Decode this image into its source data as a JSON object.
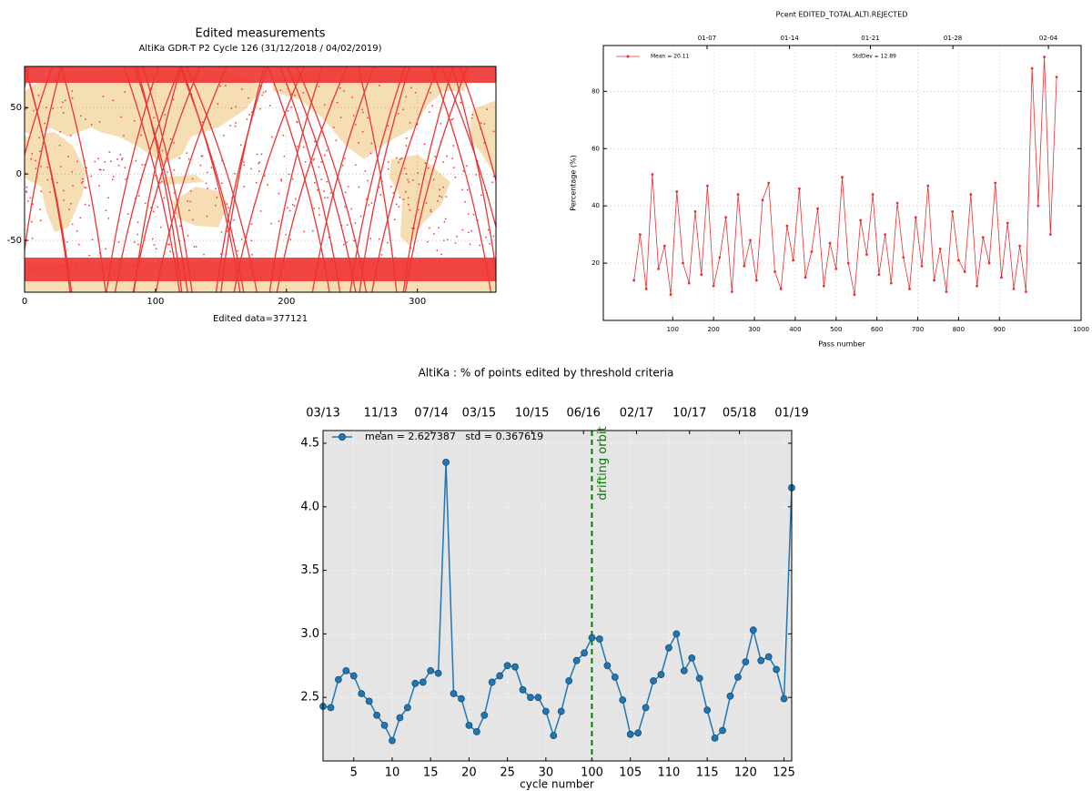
{
  "chart_data": [
    {
      "type": "map",
      "title": "Edited measurements",
      "subtitle": "AltiKa GDR-T P2 Cycle 126 (31/12/2018 / 04/02/2019)",
      "xlabel": "Edited data=377121",
      "xlim": [
        0,
        360
      ],
      "ylim": [
        -89,
        81
      ],
      "xticks": [
        0,
        100,
        200,
        300
      ],
      "yticks": [
        -50,
        0,
        50
      ],
      "grid": true,
      "color": "#ee3333",
      "land_color": "#f5deb3"
    },
    {
      "type": "line",
      "title": "Pcent EDITED_TOTAL.ALTI.REJECTED",
      "xlabel": "Pass number",
      "ylabel": "Percentage (%)",
      "x": [
        5,
        20,
        35,
        50,
        65,
        80,
        95,
        110,
        125,
        140,
        155,
        170,
        185,
        200,
        215,
        230,
        245,
        260,
        275,
        290,
        305,
        320,
        335,
        350,
        365,
        380,
        395,
        410,
        425,
        440,
        455,
        470,
        485,
        500,
        515,
        530,
        545,
        560,
        575,
        590,
        605,
        620,
        635,
        650,
        665,
        680,
        695,
        710,
        725,
        740,
        755,
        770,
        785,
        800,
        815,
        830,
        845,
        860,
        875,
        890,
        905,
        920,
        935,
        950,
        965,
        972,
        978,
        984,
        990,
        996
      ],
      "series": [
        {
          "name": "Mean = 20.11",
          "color": "#e83030",
          "values": [
            14,
            30,
            11,
            51,
            18,
            26,
            9,
            45,
            20,
            13,
            38,
            16,
            47,
            12,
            22,
            36,
            10,
            44,
            19,
            28,
            14,
            42,
            48,
            17,
            11,
            33,
            21,
            46,
            15,
            24,
            39,
            12,
            27,
            18,
            50,
            20,
            9,
            35,
            23,
            44,
            16,
            30,
            13,
            41,
            22,
            11,
            36,
            19,
            47,
            14,
            25,
            10,
            38,
            21,
            17,
            44,
            12,
            29,
            20,
            48,
            15,
            34,
            11,
            26,
            10,
            88,
            40,
            92,
            30,
            85
          ]
        }
      ],
      "annotations": [
        "StdDev = 12.89"
      ],
      "xlim": [
        0,
        1000
      ],
      "ylim": [
        0,
        96
      ],
      "xticks": [
        100,
        200,
        300,
        400,
        500,
        600,
        700,
        800,
        900,
        1000
      ],
      "yticks": [
        20,
        40,
        60,
        80
      ],
      "x2ticks": [
        {
          "value": 184,
          "label": "01-07"
        },
        {
          "value": 386,
          "label": "01-14"
        },
        {
          "value": 584,
          "label": "01-21"
        },
        {
          "value": 786,
          "label": "01-28"
        },
        {
          "value": 988,
          "label": "02-04"
        }
      ],
      "grid": true,
      "legend": "upper left"
    },
    {
      "type": "line",
      "title": "AltiKa : % of points edited by threshold criteria",
      "xlabel": "cycle number",
      "x": [
        1,
        2,
        3,
        4,
        5,
        6,
        7,
        8,
        9,
        10,
        11,
        12,
        13,
        14,
        15,
        16,
        17,
        18,
        19,
        20,
        21,
        22,
        23,
        24,
        25,
        26,
        27,
        28,
        29,
        30,
        31,
        32,
        33,
        34,
        35,
        100,
        101,
        102,
        103,
        104,
        105,
        106,
        107,
        108,
        109,
        110,
        111,
        112,
        113,
        114,
        115,
        116,
        117,
        118,
        119,
        120,
        121,
        122,
        123,
        124,
        125,
        126
      ],
      "series": [
        {
          "name": "mean = 2.627387   std = 0.367619",
          "color": "#1f77b4",
          "values": [
            2.43,
            2.42,
            2.64,
            2.71,
            2.67,
            2.53,
            2.47,
            2.36,
            2.28,
            2.16,
            2.34,
            2.42,
            2.61,
            2.62,
            2.71,
            2.69,
            4.35,
            2.53,
            2.49,
            2.28,
            2.23,
            2.36,
            2.62,
            2.67,
            2.75,
            2.74,
            2.56,
            2.5,
            2.5,
            2.39,
            2.2,
            2.39,
            2.63,
            2.79,
            2.85,
            2.97,
            2.96,
            2.75,
            2.66,
            2.48,
            2.21,
            2.22,
            2.42,
            2.63,
            2.68,
            2.89,
            3.0,
            2.71,
            2.81,
            2.65,
            2.4,
            2.18,
            2.24,
            2.51,
            2.66,
            2.78,
            3.03,
            2.79,
            2.82,
            2.72,
            2.49,
            4.15
          ]
        }
      ],
      "vline": {
        "x": 99.5,
        "label": "drifting orbit",
        "color": "#008000"
      },
      "xlim": [
        1,
        126
      ],
      "ylim": [
        2.0,
        4.6
      ],
      "xticks": [
        5,
        10,
        15,
        20,
        25,
        30,
        100,
        105,
        110,
        115,
        120,
        125
      ],
      "yticks": [
        2.5,
        {
          "value": 3,
          "label": "3.0"
        },
        3.5,
        {
          "value": 4,
          "label": "4.0"
        },
        4.5
      ],
      "x2ticks": [
        {
          "value": 1,
          "label": "03/13"
        },
        {
          "value": 8.5,
          "label": "11/13"
        },
        {
          "value": 15.1,
          "label": "07/14"
        },
        {
          "value": 21.3,
          "label": "03/15"
        },
        {
          "value": 28.2,
          "label": "10/15"
        },
        {
          "value": 34.9,
          "label": "06/16"
        },
        {
          "value": 105.8,
          "label": "02/17"
        },
        {
          "value": 112.7,
          "label": "10/17"
        },
        {
          "value": 119.2,
          "label": "05/18"
        },
        {
          "value": 126,
          "label": "01/19"
        }
      ],
      "grid": true,
      "legend": "upper left"
    }
  ]
}
